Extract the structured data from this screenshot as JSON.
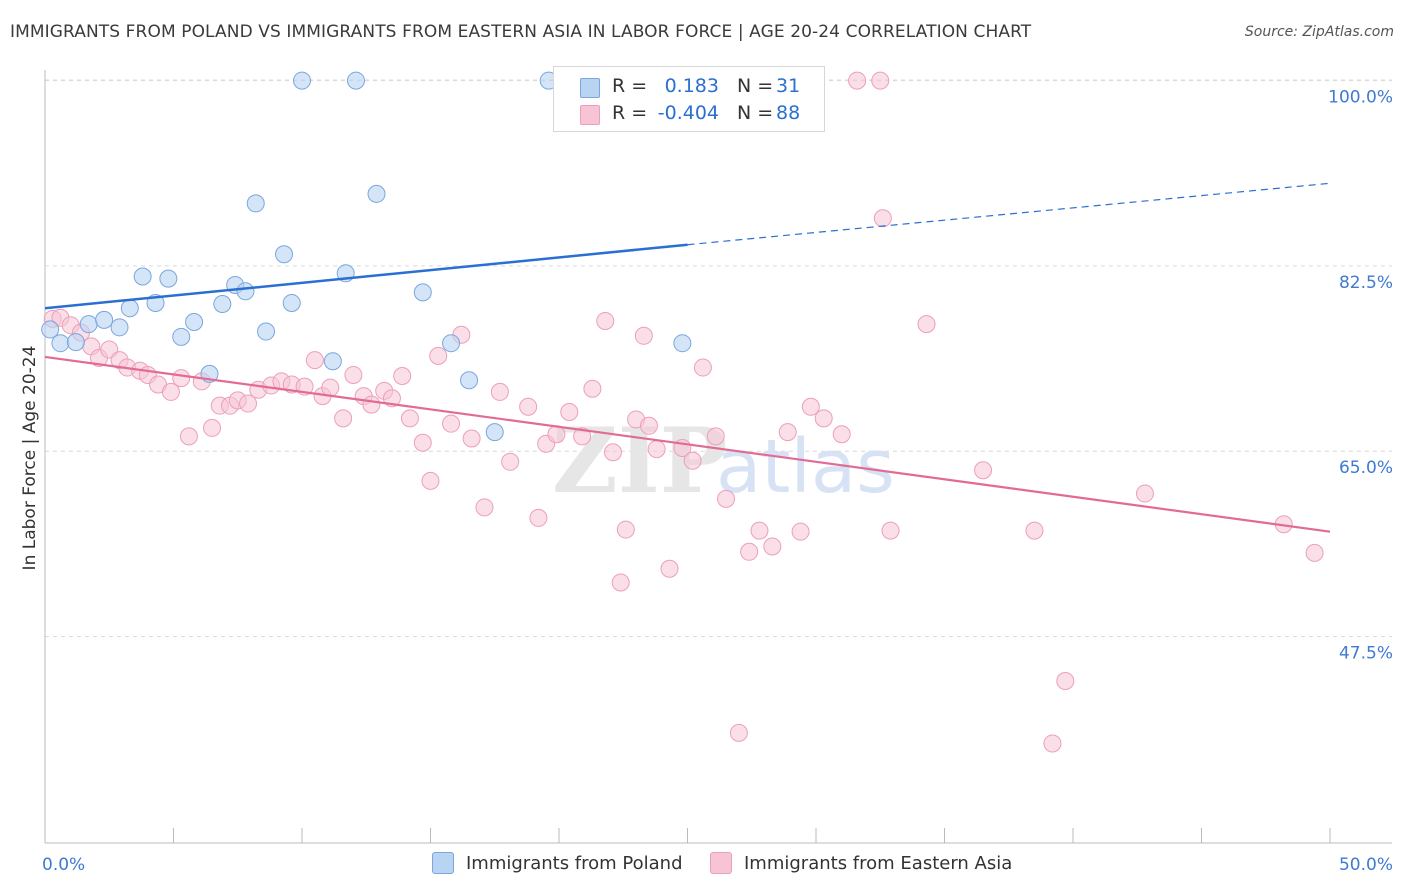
{
  "title": "IMMIGRANTS FROM POLAND VS IMMIGRANTS FROM EASTERN ASIA IN LABOR FORCE | AGE 20-24 CORRELATION CHART",
  "source": "Source: ZipAtlas.com",
  "watermark": {
    "zip": "ZIP",
    "atlas": "atlas"
  },
  "colors": {
    "poland_fill": "#b9d3f3",
    "poland_stroke": "#7aa6de",
    "poland_line": "#2a6fd1",
    "easia_fill": "#f7c4d5",
    "easia_stroke": "#ec9fb9",
    "easia_line": "#e26b96",
    "axis_label_blue": "#3f7ad1",
    "grid": "#d9d9d9"
  },
  "stats_box": {
    "rows": [
      {
        "r_label": "R =",
        "r_value": "0.183",
        "n_label": "N =",
        "n_value": "31"
      },
      {
        "r_label": "R =",
        "r_value": "-0.404",
        "n_label": "N =",
        "n_value": "88"
      }
    ]
  },
  "legend": {
    "poland": "Immigrants from Poland",
    "easia": "Immigrants from Eastern Asia"
  },
  "chart_data": {
    "type": "scatter",
    "title": "IMMIGRANTS FROM POLAND VS IMMIGRANTS FROM EASTERN ASIA IN LABOR FORCE | AGE 20-24 CORRELATION CHART",
    "xlabel": "",
    "ylabel": "In Labor Force | Age 20-24",
    "xlim": [
      0,
      50
    ],
    "ylim": [
      28,
      101
    ],
    "x_tick_labels": [
      "0.0%",
      "50.0%"
    ],
    "y_ticks": [
      47.5,
      65.0,
      82.5,
      100.0
    ],
    "y_tick_labels": [
      "47.5%",
      "65.0%",
      "82.5%",
      "100.0%"
    ],
    "grid": true,
    "legend_position": "bottom",
    "series": [
      {
        "name": "Immigrants from Poland",
        "r": 0.183,
        "n": 31,
        "trend": {
          "x0": 0,
          "y0": 78.5,
          "x1": 25,
          "y1": 84.5,
          "dashed_to_x": 50,
          "dashed_to_y": 90.3
        },
        "points": [
          [
            0.2,
            76.5
          ],
          [
            0.6,
            75.2
          ],
          [
            1.2,
            75.3
          ],
          [
            1.7,
            77.0
          ],
          [
            2.3,
            77.4
          ],
          [
            2.9,
            76.7
          ],
          [
            3.3,
            78.5
          ],
          [
            3.8,
            81.5
          ],
          [
            4.3,
            79.0
          ],
          [
            4.8,
            81.3
          ],
          [
            5.3,
            75.8
          ],
          [
            5.8,
            77.2
          ],
          [
            6.4,
            72.3
          ],
          [
            6.9,
            78.9
          ],
          [
            7.4,
            80.7
          ],
          [
            7.8,
            80.1
          ],
          [
            8.2,
            88.4
          ],
          [
            8.6,
            76.3
          ],
          [
            9.3,
            83.6
          ],
          [
            9.6,
            79.0
          ],
          [
            10.0,
            100.0
          ],
          [
            11.2,
            73.5
          ],
          [
            11.7,
            81.8
          ],
          [
            12.1,
            100.0
          ],
          [
            12.9,
            89.3
          ],
          [
            14.7,
            80.0
          ],
          [
            15.8,
            75.2
          ],
          [
            16.5,
            71.7
          ],
          [
            17.5,
            66.8
          ],
          [
            19.6,
            100.0
          ],
          [
            24.8,
            75.2
          ]
        ]
      },
      {
        "name": "Immigrants from Eastern Asia",
        "r": -0.404,
        "n": 88,
        "trend": {
          "x0": 0,
          "y0": 73.9,
          "x1": 50,
          "y1": 57.4
        },
        "points": [
          [
            0.3,
            77.5
          ],
          [
            0.6,
            77.6
          ],
          [
            1.0,
            76.9
          ],
          [
            1.4,
            76.2
          ],
          [
            1.8,
            74.9
          ],
          [
            2.1,
            73.8
          ],
          [
            2.5,
            74.6
          ],
          [
            2.9,
            73.6
          ],
          [
            3.2,
            72.9
          ],
          [
            3.7,
            72.6
          ],
          [
            4.0,
            72.2
          ],
          [
            4.4,
            71.3
          ],
          [
            4.9,
            70.6
          ],
          [
            5.3,
            71.9
          ],
          [
            5.6,
            66.4
          ],
          [
            6.1,
            71.6
          ],
          [
            6.5,
            67.2
          ],
          [
            6.8,
            69.3
          ],
          [
            7.2,
            69.3
          ],
          [
            7.5,
            69.8
          ],
          [
            7.9,
            69.5
          ],
          [
            8.3,
            70.8
          ],
          [
            8.8,
            71.2
          ],
          [
            9.2,
            71.6
          ],
          [
            9.6,
            71.3
          ],
          [
            10.1,
            71.1
          ],
          [
            10.5,
            73.6
          ],
          [
            10.8,
            70.2
          ],
          [
            11.1,
            71.0
          ],
          [
            11.6,
            68.1
          ],
          [
            12.0,
            72.2
          ],
          [
            12.4,
            70.2
          ],
          [
            12.7,
            69.4
          ],
          [
            13.2,
            70.7
          ],
          [
            13.5,
            70.0
          ],
          [
            13.9,
            72.1
          ],
          [
            14.2,
            68.1
          ],
          [
            14.7,
            65.8
          ],
          [
            15.0,
            62.2
          ],
          [
            15.3,
            74.0
          ],
          [
            15.8,
            67.6
          ],
          [
            16.2,
            76.0
          ],
          [
            16.6,
            66.2
          ],
          [
            17.1,
            59.7
          ],
          [
            17.7,
            70.6
          ],
          [
            18.1,
            64.0
          ],
          [
            18.8,
            69.2
          ],
          [
            19.2,
            58.7
          ],
          [
            19.5,
            65.7
          ],
          [
            19.9,
            66.6
          ],
          [
            20.4,
            68.7
          ],
          [
            20.9,
            66.4
          ],
          [
            21.3,
            70.9
          ],
          [
            21.8,
            77.3
          ],
          [
            22.1,
            64.9
          ],
          [
            22.4,
            52.6
          ],
          [
            22.6,
            57.6
          ],
          [
            23.0,
            68.0
          ],
          [
            23.3,
            75.9
          ],
          [
            23.5,
            67.4
          ],
          [
            23.8,
            65.2
          ],
          [
            24.3,
            53.9
          ],
          [
            24.8,
            65.3
          ],
          [
            25.2,
            64.1
          ],
          [
            25.6,
            72.9
          ],
          [
            26.1,
            66.4
          ],
          [
            26.5,
            60.5
          ],
          [
            27.0,
            38.4
          ],
          [
            27.4,
            55.5
          ],
          [
            27.8,
            57.5
          ],
          [
            28.3,
            56.0
          ],
          [
            28.9,
            66.8
          ],
          [
            29.4,
            57.4
          ],
          [
            29.8,
            69.2
          ],
          [
            30.3,
            68.1
          ],
          [
            31.0,
            66.6
          ],
          [
            31.6,
            100.0
          ],
          [
            32.5,
            100.0
          ],
          [
            32.6,
            87.0
          ],
          [
            32.9,
            57.5
          ],
          [
            34.3,
            77.0
          ],
          [
            36.5,
            63.2
          ],
          [
            38.5,
            57.5
          ],
          [
            39.2,
            37.4
          ],
          [
            39.7,
            43.3
          ],
          [
            42.8,
            61.0
          ],
          [
            48.2,
            58.1
          ],
          [
            49.4,
            55.4
          ]
        ]
      }
    ]
  }
}
